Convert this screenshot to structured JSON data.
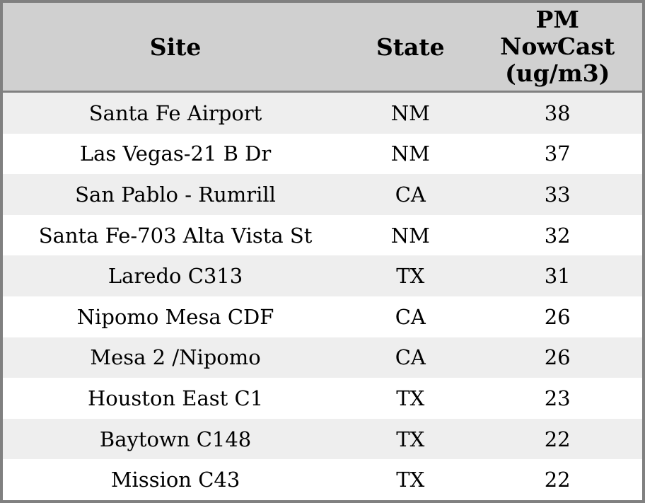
{
  "table": {
    "columns": [
      {
        "key": "site",
        "label": "Site"
      },
      {
        "key": "state",
        "label": "State"
      },
      {
        "key": "pm_nowcast",
        "label": "PM\nNowCast\n(ug/m3)"
      }
    ],
    "rows": [
      {
        "site": "Santa Fe Airport",
        "state": "NM",
        "pm_nowcast": "38"
      },
      {
        "site": "Las Vegas-21 B Dr",
        "state": "NM",
        "pm_nowcast": "37"
      },
      {
        "site": "San Pablo - Rumrill",
        "state": "CA",
        "pm_nowcast": "33"
      },
      {
        "site": "Santa Fe-703 Alta Vista St",
        "state": "NM",
        "pm_nowcast": "32"
      },
      {
        "site": "Laredo C313",
        "state": "TX",
        "pm_nowcast": "31"
      },
      {
        "site": "Nipomo Mesa CDF",
        "state": "CA",
        "pm_nowcast": "26"
      },
      {
        "site": "Mesa 2 /Nipomo",
        "state": "CA",
        "pm_nowcast": "26"
      },
      {
        "site": "Houston East C1",
        "state": "TX",
        "pm_nowcast": "23"
      },
      {
        "site": "Baytown C148",
        "state": "TX",
        "pm_nowcast": "22"
      },
      {
        "site": "Mission C43",
        "state": "TX",
        "pm_nowcast": "22"
      }
    ],
    "colors": {
      "border": "#808080",
      "header_bg": "#d0d0d0",
      "stripe_row_bg": "#eeeeee",
      "plain_row_bg": "#ffffff",
      "text": "#000000"
    }
  },
  "chart_data": {
    "type": "table",
    "title": "",
    "columns": [
      "Site",
      "State",
      "PM NowCast (ug/m3)"
    ],
    "rows": [
      [
        "Santa Fe Airport",
        "NM",
        38
      ],
      [
        "Las Vegas-21 B Dr",
        "NM",
        37
      ],
      [
        "San Pablo - Rumrill",
        "CA",
        33
      ],
      [
        "Santa Fe-703 Alta Vista St",
        "NM",
        32
      ],
      [
        "Laredo C313",
        "TX",
        31
      ],
      [
        "Nipomo Mesa CDF",
        "CA",
        26
      ],
      [
        "Mesa 2 /Nipomo",
        "CA",
        26
      ],
      [
        "Houston East C1",
        "TX",
        23
      ],
      [
        "Baytown C148",
        "TX",
        22
      ],
      [
        "Mission C43",
        "TX",
        22
      ]
    ]
  }
}
